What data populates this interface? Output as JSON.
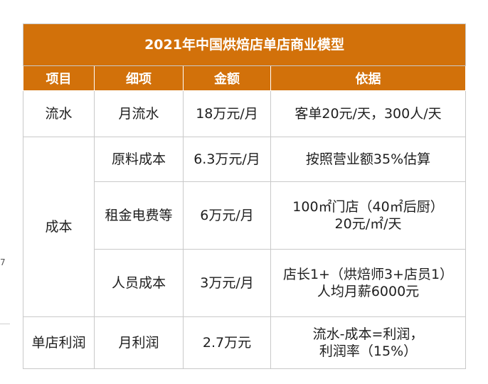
{
  "title": "2021年中国烘焙店单店商业模型",
  "headers": [
    "项目",
    "细项",
    "金额",
    "依据"
  ],
  "rows": {
    "flow": {
      "category": "流水",
      "item": "月流水",
      "amount": "18万元/月",
      "basis": "客单20元/天，300人/天"
    },
    "cost": {
      "category": "成本",
      "material": {
        "item": "原料成本",
        "amount": "6.3万元/月",
        "basis": "按照营业额35%估算"
      },
      "rent": {
        "item": "租金电费等",
        "amount": "6万元/月",
        "basis_line1": "100㎡门店（40㎡后厨）",
        "basis_line2": "20元/㎡/天"
      },
      "staff": {
        "item": "人员成本",
        "amount": "3万元/月",
        "basis_line1": "店长1+（烘焙师3+店员1）",
        "basis_line2": "人均月薪6000元"
      }
    },
    "profit": {
      "category": "单店利润",
      "item": "月利润",
      "amount": "2.7万元",
      "basis_line1": "流水-成本=利润，",
      "basis_line2": "利润率（15%）"
    }
  },
  "edge": {
    "mark": "7"
  }
}
